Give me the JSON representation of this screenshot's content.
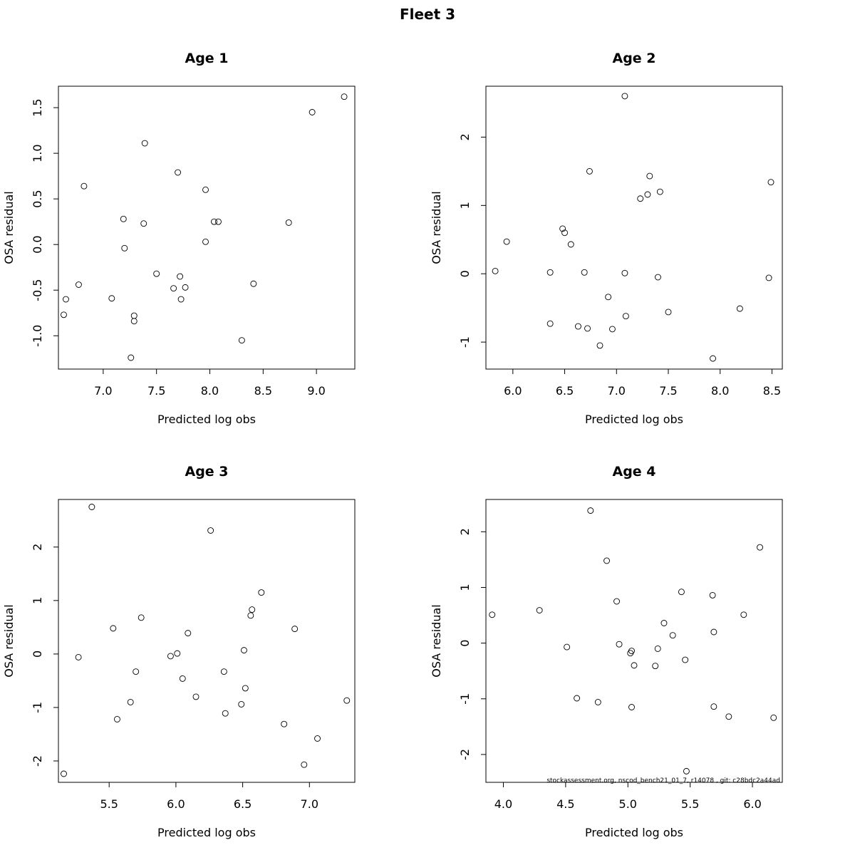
{
  "title": "Fleet 3",
  "footer": "stockassessment.org, nscod_bench21_01_7, r14078 , git: c28bdc2a44ad",
  "chart_data": [
    {
      "type": "scatter",
      "title": "Age 1",
      "xlabel": "Predicted log obs",
      "ylabel": "OSA residual",
      "xlim": [
        6.58,
        9.36
      ],
      "ylim": [
        -1.365,
        1.735
      ],
      "xticks": [
        7.0,
        7.5,
        8.0,
        8.5,
        9.0
      ],
      "xtick_labels": [
        "7.0",
        "7.5",
        "8.0",
        "8.5",
        "9.0"
      ],
      "yticks": [
        -1.0,
        -0.5,
        0.0,
        0.5,
        1.0,
        1.5
      ],
      "ytick_labels": [
        "-1.0",
        "-0.5",
        "0.0",
        "0.5",
        "1.0",
        "1.5"
      ],
      "points": [
        [
          6.63,
          -0.77
        ],
        [
          6.65,
          -0.6
        ],
        [
          6.77,
          -0.44
        ],
        [
          6.82,
          0.64
        ],
        [
          7.08,
          -0.59
        ],
        [
          7.19,
          0.28
        ],
        [
          7.2,
          -0.04
        ],
        [
          7.26,
          -1.24
        ],
        [
          7.29,
          -0.78
        ],
        [
          7.29,
          -0.84
        ],
        [
          7.38,
          0.23
        ],
        [
          7.39,
          1.11
        ],
        [
          7.5,
          -0.32
        ],
        [
          7.66,
          -0.48
        ],
        [
          7.7,
          0.79
        ],
        [
          7.72,
          -0.35
        ],
        [
          7.73,
          -0.6
        ],
        [
          7.77,
          -0.47
        ],
        [
          7.96,
          0.6
        ],
        [
          7.96,
          0.03
        ],
        [
          8.04,
          0.25
        ],
        [
          8.08,
          0.25
        ],
        [
          8.3,
          -1.05
        ],
        [
          8.41,
          -0.43
        ],
        [
          8.74,
          0.24
        ],
        [
          8.96,
          1.45
        ],
        [
          9.26,
          1.62
        ]
      ]
    },
    {
      "type": "scatter",
      "title": "Age 2",
      "xlabel": "Predicted log obs",
      "ylabel": "OSA residual",
      "xlim": [
        5.74,
        8.6
      ],
      "ylim": [
        -1.395,
        2.745
      ],
      "xticks": [
        6.0,
        6.5,
        7.0,
        7.5,
        8.0,
        8.5
      ],
      "xtick_labels": [
        "6.0",
        "6.5",
        "7.0",
        "7.5",
        "8.0",
        "8.5"
      ],
      "yticks": [
        -1,
        0,
        1,
        2
      ],
      "ytick_labels": [
        "-1",
        "0",
        "1",
        "2"
      ],
      "points": [
        [
          5.83,
          0.04
        ],
        [
          5.94,
          0.47
        ],
        [
          6.36,
          0.02
        ],
        [
          6.36,
          -0.73
        ],
        [
          6.48,
          0.66
        ],
        [
          6.5,
          0.6
        ],
        [
          6.56,
          0.43
        ],
        [
          6.63,
          -0.77
        ],
        [
          6.69,
          0.02
        ],
        [
          6.72,
          -0.8
        ],
        [
          6.74,
          1.5
        ],
        [
          6.84,
          -1.05
        ],
        [
          6.92,
          -0.34
        ],
        [
          6.96,
          -0.81
        ],
        [
          7.08,
          2.6
        ],
        [
          7.08,
          0.01
        ],
        [
          7.09,
          -0.62
        ],
        [
          7.23,
          1.1
        ],
        [
          7.3,
          1.16
        ],
        [
          7.32,
          1.43
        ],
        [
          7.4,
          -0.05
        ],
        [
          7.42,
          1.2
        ],
        [
          7.5,
          -0.56
        ],
        [
          7.93,
          -1.24
        ],
        [
          8.19,
          -0.51
        ],
        [
          8.47,
          -0.06
        ],
        [
          8.49,
          1.34
        ]
      ]
    },
    {
      "type": "scatter",
      "title": "Age 3",
      "xlabel": "Predicted log obs",
      "ylabel": "OSA residual",
      "xlim": [
        5.12,
        7.34
      ],
      "ylim": [
        -2.4,
        2.89
      ],
      "xticks": [
        5.5,
        6.0,
        6.5,
        7.0
      ],
      "xtick_labels": [
        "5.5",
        "6.0",
        "6.5",
        "7.0"
      ],
      "yticks": [
        -2,
        -1,
        0,
        1,
        2
      ],
      "ytick_labels": [
        "-2",
        "-1",
        "0",
        "1",
        "2"
      ],
      "points": [
        [
          5.16,
          -2.24
        ],
        [
          5.27,
          -0.06
        ],
        [
          5.37,
          2.75
        ],
        [
          5.53,
          0.48
        ],
        [
          5.56,
          -1.22
        ],
        [
          5.66,
          -0.9
        ],
        [
          5.7,
          -0.33
        ],
        [
          5.74,
          0.68
        ],
        [
          5.96,
          -0.04
        ],
        [
          6.01,
          0.01
        ],
        [
          6.05,
          -0.46
        ],
        [
          6.09,
          0.39
        ],
        [
          6.15,
          -0.8
        ],
        [
          6.26,
          2.31
        ],
        [
          6.36,
          -0.33
        ],
        [
          6.37,
          -1.11
        ],
        [
          6.49,
          -0.94
        ],
        [
          6.51,
          0.07
        ],
        [
          6.52,
          -0.64
        ],
        [
          6.56,
          0.72
        ],
        [
          6.57,
          0.83
        ],
        [
          6.64,
          1.15
        ],
        [
          6.81,
          -1.31
        ],
        [
          6.89,
          0.47
        ],
        [
          6.96,
          -2.07
        ],
        [
          7.06,
          -1.58
        ],
        [
          7.28,
          -0.87
        ]
      ]
    },
    {
      "type": "scatter",
      "title": "Age 4",
      "xlabel": "Predicted log obs",
      "ylabel": "OSA residual",
      "xlim": [
        3.86,
        6.24
      ],
      "ylim": [
        -2.5,
        2.58
      ],
      "xticks": [
        4.0,
        4.5,
        5.0,
        5.5,
        6.0
      ],
      "xtick_labels": [
        "4.0",
        "4.5",
        "5.0",
        "5.5",
        "6.0"
      ],
      "yticks": [
        -2,
        -1,
        0,
        1,
        2
      ],
      "ytick_labels": [
        "-2",
        "-1",
        "0",
        "1",
        "2"
      ],
      "points": [
        [
          3.91,
          0.51
        ],
        [
          4.29,
          0.59
        ],
        [
          4.51,
          -0.07
        ],
        [
          4.59,
          -0.99
        ],
        [
          4.7,
          2.38
        ],
        [
          4.76,
          -1.06
        ],
        [
          4.83,
          1.48
        ],
        [
          4.91,
          0.75
        ],
        [
          4.93,
          -0.02
        ],
        [
          5.02,
          -0.18
        ],
        [
          5.03,
          -0.14
        ],
        [
          5.03,
          -1.15
        ],
        [
          5.05,
          -0.4
        ],
        [
          5.22,
          -0.41
        ],
        [
          5.24,
          -0.1
        ],
        [
          5.29,
          0.36
        ],
        [
          5.36,
          0.14
        ],
        [
          5.43,
          0.92
        ],
        [
          5.46,
          -0.3
        ],
        [
          5.47,
          -2.3
        ],
        [
          5.68,
          0.86
        ],
        [
          5.69,
          0.2
        ],
        [
          5.69,
          -1.14
        ],
        [
          5.81,
          -1.32
        ],
        [
          5.93,
          0.51
        ],
        [
          6.06,
          1.72
        ],
        [
          6.17,
          -1.34
        ]
      ]
    }
  ]
}
